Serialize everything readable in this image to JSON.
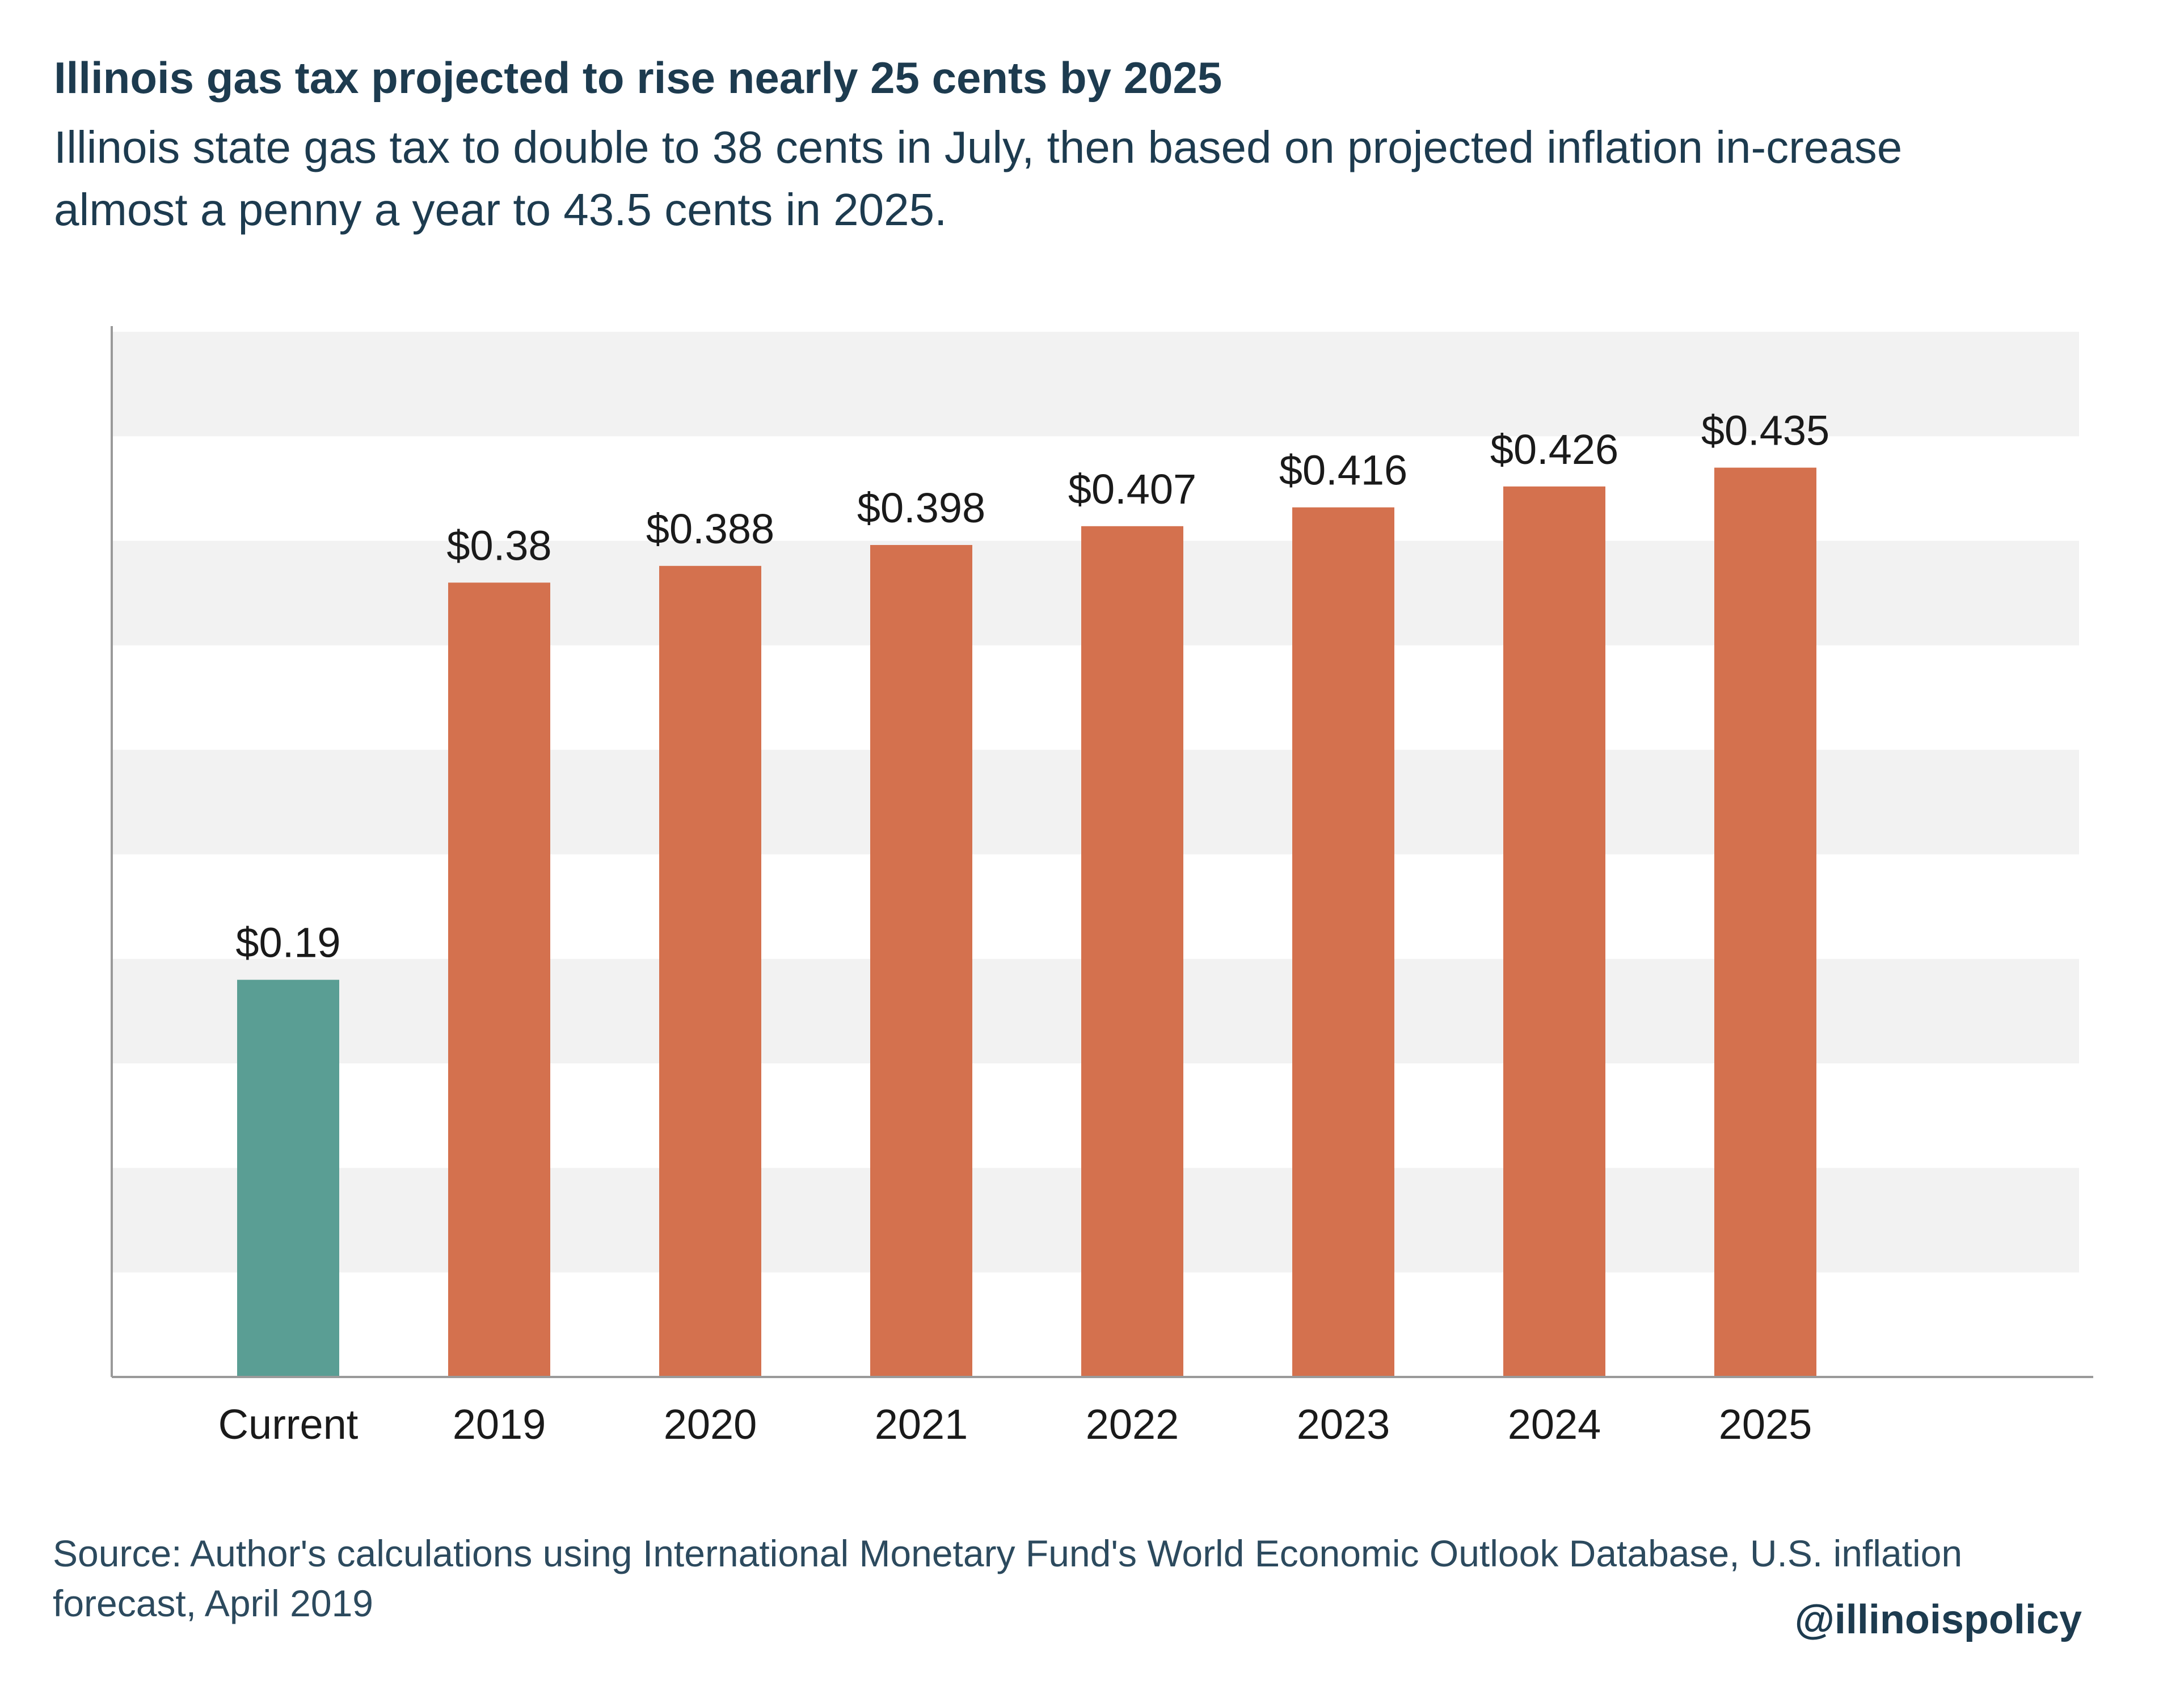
{
  "header": {
    "title": "Illinois gas tax projected to rise nearly 25 cents by 2025",
    "subtitle": "Illinois state gas tax to double to 38 cents in July, then based on projected inflation in-crease almost a penny a year to 43.5 cents in 2025."
  },
  "chart_data": {
    "type": "bar",
    "title": "Illinois gas tax projected to rise nearly 25 cents by 2025",
    "subtitle": "Illinois state gas tax to double to 38 cents in July, then based on projected inflation in-crease almost a penny a year to 43.5 cents in 2025.",
    "xlabel": "",
    "ylabel": "",
    "categories": [
      "Current",
      "2019",
      "2020",
      "2021",
      "2022",
      "2023",
      "2024",
      "2025"
    ],
    "values": [
      0.19,
      0.38,
      0.388,
      0.398,
      0.407,
      0.416,
      0.426,
      0.435
    ],
    "data_labels": [
      "$0.19",
      "$0.38",
      "$0.388",
      "$0.398",
      "$0.407",
      "$0.416",
      "$0.426",
      "$0.435"
    ],
    "colors": [
      "#5a9e94",
      "#d4714e",
      "#d4714e",
      "#d4714e",
      "#d4714e",
      "#d4714e",
      "#d4714e",
      "#d4714e"
    ],
    "ylim": [
      0,
      0.5
    ],
    "grid": "alternating horizontal bands",
    "band_color": "#f2f2f2",
    "axis_color": "#9a9a9a",
    "legend": "none"
  },
  "footer": {
    "source": "Source: Author's calculations using International Monetary Fund's World Economic Outlook Database, U.S. inflation forecast, April 2019",
    "handle": "@illinoispolicy"
  }
}
